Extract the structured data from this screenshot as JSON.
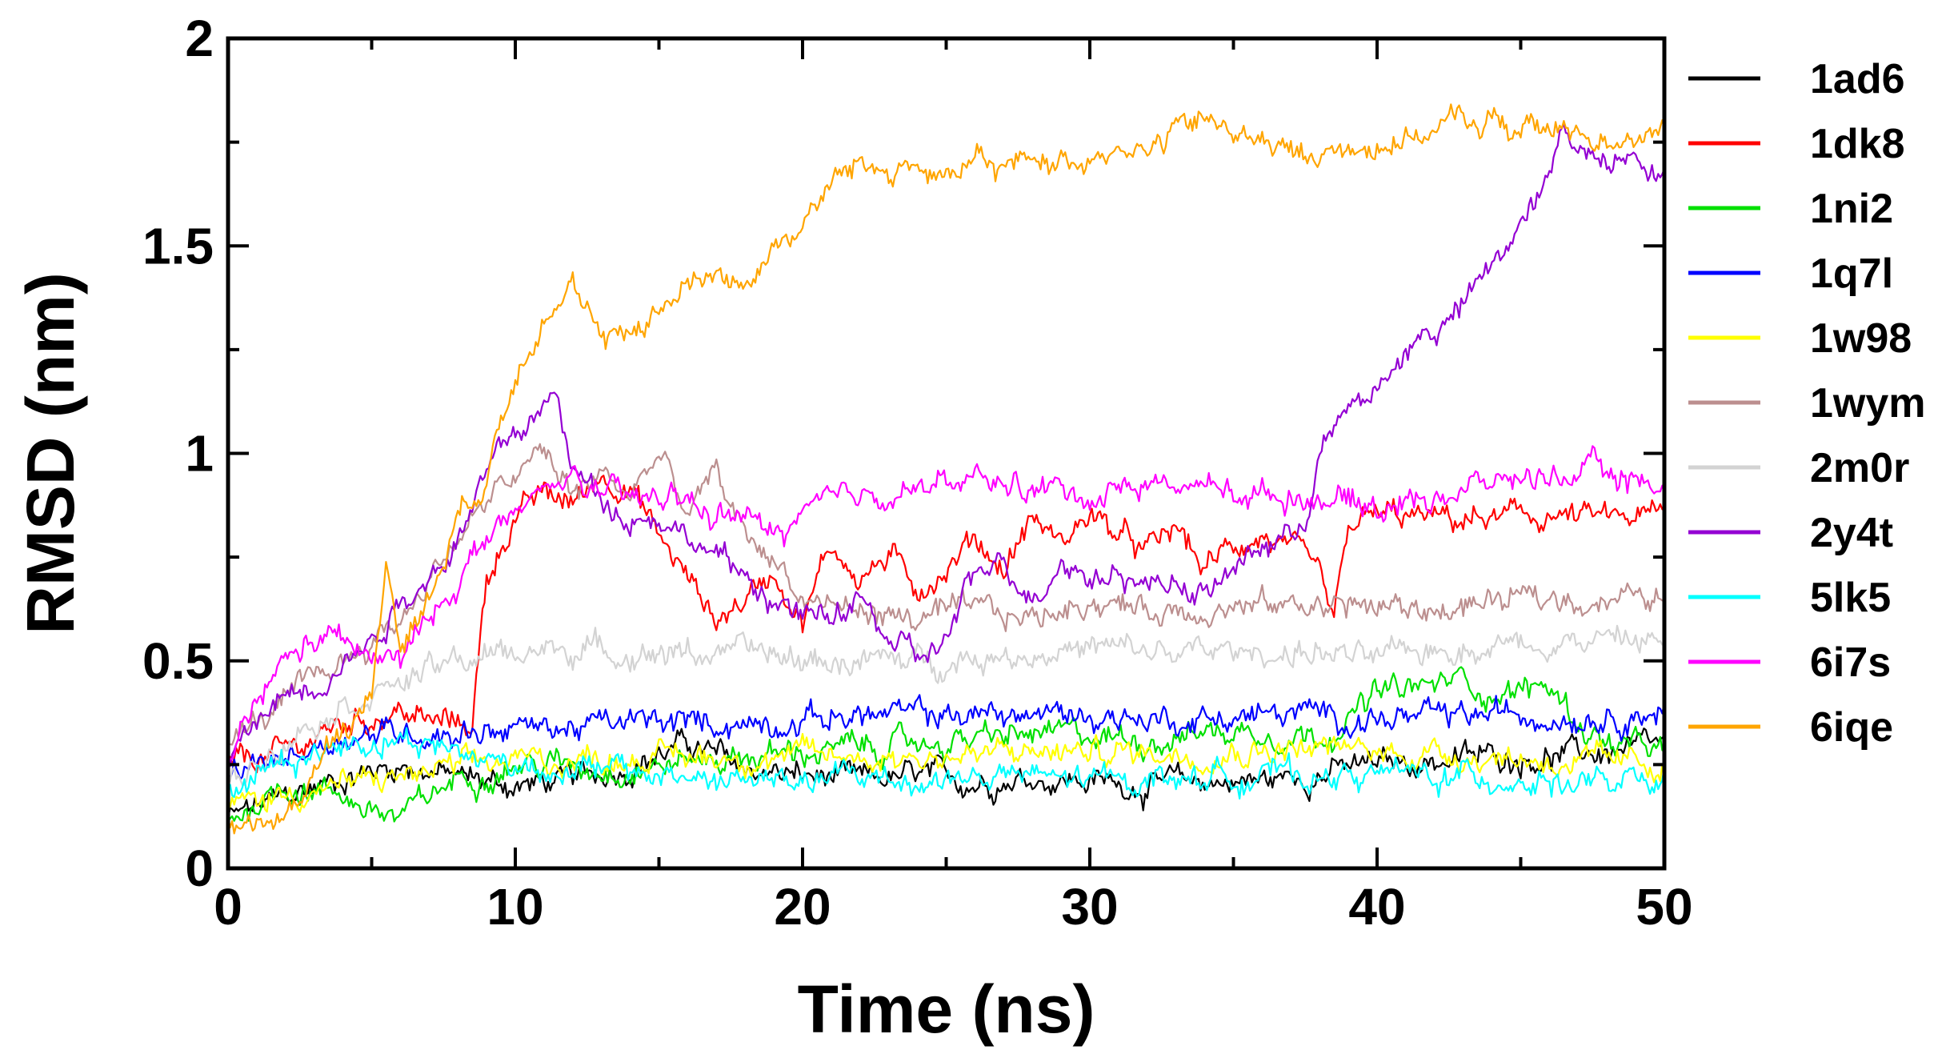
{
  "chart_data": {
    "type": "line",
    "title": "",
    "xlabel": "Time (ns)",
    "ylabel": "RMSD (nm)",
    "xlim": [
      0,
      50
    ],
    "ylim": [
      0,
      2
    ],
    "x_ticks": [
      0,
      10,
      20,
      30,
      40,
      50
    ],
    "x_tick_labels": [
      "0",
      "10",
      "20",
      "30",
      "40",
      "50"
    ],
    "y_ticks": [
      0,
      0.5,
      1,
      1.5,
      2
    ],
    "y_tick_labels": [
      "0",
      "0.5",
      "1",
      "1.5",
      "2"
    ],
    "grid": false,
    "legend_position": "right",
    "series": [
      {
        "name": "1ad6",
        "color": "#000000",
        "x": [
          0,
          2,
          4,
          6,
          8,
          10,
          12,
          14,
          16,
          18,
          20,
          22,
          24,
          26,
          28,
          30,
          32,
          34,
          36,
          38,
          40,
          42,
          44,
          46,
          48,
          50
        ],
        "y": [
          0.12,
          0.17,
          0.22,
          0.25,
          0.22,
          0.2,
          0.21,
          0.25,
          0.3,
          0.24,
          0.22,
          0.21,
          0.22,
          0.21,
          0.22,
          0.21,
          0.2,
          0.21,
          0.21,
          0.23,
          0.25,
          0.26,
          0.27,
          0.27,
          0.28,
          0.29
        ]
      },
      {
        "name": "1dk8",
        "color": "#ff0000",
        "x": [
          0,
          2,
          4,
          6,
          7,
          8.5,
          9,
          10,
          11,
          12,
          13,
          14,
          15,
          16,
          17,
          18,
          19,
          20,
          21,
          22,
          23,
          24,
          25,
          26,
          27,
          28,
          29,
          30,
          31,
          32,
          33,
          34,
          35,
          36,
          37,
          38,
          38.5,
          39,
          40,
          42,
          44,
          46,
          48,
          50
        ],
        "y": [
          0.25,
          0.28,
          0.35,
          0.38,
          0.35,
          0.35,
          0.7,
          0.85,
          0.9,
          0.88,
          0.95,
          0.92,
          0.8,
          0.7,
          0.6,
          0.65,
          0.72,
          0.6,
          0.78,
          0.7,
          0.75,
          0.68,
          0.72,
          0.8,
          0.72,
          0.85,
          0.78,
          0.86,
          0.8,
          0.76,
          0.82,
          0.72,
          0.78,
          0.8,
          0.76,
          0.7,
          0.58,
          0.82,
          0.85,
          0.84,
          0.84,
          0.85,
          0.84,
          0.85
        ]
      },
      {
        "name": "1ni2",
        "color": "#00e000",
        "x": [
          0,
          2,
          4,
          5,
          6,
          8,
          10,
          12,
          14,
          16,
          18,
          20,
          22,
          24,
          26,
          28,
          30,
          32,
          34,
          36,
          38,
          39,
          40,
          42,
          43,
          44,
          46,
          47,
          48,
          50
        ],
        "y": [
          0.12,
          0.2,
          0.18,
          0.14,
          0.12,
          0.22,
          0.25,
          0.25,
          0.24,
          0.26,
          0.27,
          0.28,
          0.29,
          0.3,
          0.31,
          0.32,
          0.32,
          0.31,
          0.33,
          0.33,
          0.32,
          0.36,
          0.42,
          0.44,
          0.46,
          0.42,
          0.44,
          0.35,
          0.3,
          0.28
        ]
      },
      {
        "name": "1q7l",
        "color": "#0000ff",
        "x": [
          0,
          2,
          4,
          6,
          8,
          10,
          12,
          14,
          16,
          18,
          20,
          22,
          24,
          26,
          28,
          30,
          32,
          34,
          36,
          38,
          40,
          42,
          44,
          46,
          48,
          50
        ],
        "y": [
          0.22,
          0.27,
          0.32,
          0.33,
          0.33,
          0.34,
          0.34,
          0.35,
          0.35,
          0.35,
          0.36,
          0.37,
          0.37,
          0.37,
          0.37,
          0.37,
          0.36,
          0.36,
          0.37,
          0.37,
          0.36,
          0.36,
          0.37,
          0.37,
          0.37,
          0.38
        ]
      },
      {
        "name": "1w98",
        "color": "#ffff00",
        "x": [
          0,
          2,
          4,
          6,
          8,
          10,
          12,
          14,
          16,
          18,
          20,
          22,
          24,
          26,
          28,
          30,
          32,
          34,
          36,
          38,
          40,
          42,
          44,
          46,
          48,
          50
        ],
        "y": [
          0.15,
          0.18,
          0.2,
          0.22,
          0.24,
          0.26,
          0.26,
          0.27,
          0.27,
          0.27,
          0.27,
          0.27,
          0.27,
          0.27,
          0.28,
          0.28,
          0.28,
          0.28,
          0.29,
          0.29,
          0.28,
          0.28,
          0.27,
          0.26,
          0.25,
          0.25
        ]
      },
      {
        "name": "1wym",
        "color": "#bc8f8f",
        "x": [
          0,
          2,
          4,
          6,
          8,
          10,
          11,
          12,
          13,
          14,
          15,
          16,
          17,
          18,
          19,
          20,
          22,
          24,
          26,
          28,
          30,
          32,
          34,
          36,
          38,
          40,
          42,
          44,
          46,
          48,
          50
        ],
        "y": [
          0.3,
          0.4,
          0.5,
          0.6,
          0.8,
          0.95,
          1.0,
          0.9,
          0.95,
          0.9,
          1.0,
          0.85,
          0.95,
          0.8,
          0.75,
          0.65,
          0.62,
          0.6,
          0.62,
          0.6,
          0.65,
          0.62,
          0.63,
          0.63,
          0.64,
          0.63,
          0.62,
          0.64,
          0.65,
          0.65,
          0.65
        ]
      },
      {
        "name": "2m0r",
        "color": "#d3d3d3",
        "x": [
          0,
          2,
          4,
          6,
          8,
          10,
          12,
          14,
          16,
          18,
          20,
          22,
          24,
          26,
          28,
          30,
          32,
          34,
          36,
          38,
          40,
          42,
          44,
          46,
          48,
          50
        ],
        "y": [
          0.2,
          0.32,
          0.4,
          0.45,
          0.5,
          0.52,
          0.53,
          0.52,
          0.52,
          0.52,
          0.5,
          0.5,
          0.5,
          0.51,
          0.52,
          0.53,
          0.52,
          0.52,
          0.52,
          0.52,
          0.5,
          0.53,
          0.54,
          0.55,
          0.55,
          0.55
        ]
      },
      {
        "name": "2y4t",
        "color": "#9400d3",
        "x": [
          0,
          1,
          2,
          3,
          4,
          5,
          6,
          7,
          8,
          9,
          10,
          11,
          11.5,
          12,
          13,
          14,
          15,
          16,
          17,
          18,
          19,
          20,
          21,
          22,
          23,
          24,
          25,
          26,
          27,
          28,
          29,
          30,
          31,
          32,
          33,
          34,
          35,
          36,
          37,
          37.5,
          38,
          39,
          40,
          41,
          42,
          43,
          44,
          45,
          46,
          46.5,
          47,
          48,
          49,
          50
        ],
        "y": [
          0.25,
          0.35,
          0.42,
          0.45,
          0.5,
          0.55,
          0.65,
          0.7,
          0.8,
          0.95,
          1.05,
          1.1,
          1.15,
          0.95,
          0.9,
          0.85,
          0.85,
          0.8,
          0.75,
          0.7,
          0.65,
          0.6,
          0.6,
          0.65,
          0.55,
          0.5,
          0.55,
          0.7,
          0.75,
          0.65,
          0.75,
          0.7,
          0.72,
          0.68,
          0.7,
          0.65,
          0.72,
          0.78,
          0.8,
          0.85,
          1.0,
          1.1,
          1.15,
          1.25,
          1.3,
          1.35,
          1.45,
          1.55,
          1.65,
          1.8,
          1.75,
          1.7,
          1.75,
          1.65
        ]
      },
      {
        "name": "5lk5",
        "color": "#00ffff",
        "x": [
          0,
          2,
          4,
          6,
          8,
          10,
          12,
          14,
          16,
          18,
          20,
          22,
          24,
          26,
          28,
          30,
          32,
          34,
          36,
          38,
          40,
          42,
          44,
          46,
          48,
          50
        ],
        "y": [
          0.2,
          0.26,
          0.3,
          0.32,
          0.28,
          0.25,
          0.24,
          0.23,
          0.22,
          0.21,
          0.21,
          0.22,
          0.21,
          0.22,
          0.22,
          0.21,
          0.22,
          0.22,
          0.23,
          0.22,
          0.23,
          0.22,
          0.22,
          0.21,
          0.2,
          0.2
        ]
      },
      {
        "name": "6i7s",
        "color": "#ff00ff",
        "x": [
          0,
          1,
          2,
          3,
          4,
          5,
          6,
          7,
          8,
          9,
          10,
          11,
          12,
          13,
          14,
          15,
          16,
          17,
          18,
          19,
          20,
          22,
          24,
          26,
          28,
          30,
          32,
          34,
          36,
          38,
          40,
          42,
          44,
          46,
          48,
          50
        ],
        "y": [
          0.25,
          0.4,
          0.5,
          0.55,
          0.55,
          0.5,
          0.5,
          0.6,
          0.7,
          0.8,
          0.85,
          0.9,
          0.95,
          0.9,
          0.88,
          0.9,
          0.88,
          0.85,
          0.85,
          0.8,
          0.85,
          0.9,
          0.92,
          0.93,
          0.92,
          0.9,
          0.93,
          0.92,
          0.9,
          0.9,
          0.87,
          0.9,
          0.93,
          0.95,
          0.95,
          0.92
        ]
      },
      {
        "name": "6iqe",
        "color": "#ffa500",
        "x": [
          0,
          1,
          2,
          3,
          4,
          5,
          5.5,
          6,
          7,
          8,
          9,
          10,
          11,
          12,
          13,
          14,
          15,
          16,
          17,
          18,
          19,
          20,
          21,
          22,
          23,
          24,
          25,
          26,
          27,
          28,
          29,
          30,
          31,
          32,
          33,
          34,
          35,
          36,
          37,
          38,
          39,
          40,
          41,
          42,
          43,
          44,
          45,
          46,
          47,
          48,
          49,
          50
        ],
        "y": [
          0.1,
          0.12,
          0.1,
          0.25,
          0.35,
          0.4,
          0.75,
          0.55,
          0.65,
          0.85,
          0.95,
          1.2,
          1.35,
          1.4,
          1.25,
          1.3,
          1.35,
          1.4,
          1.45,
          1.4,
          1.5,
          1.55,
          1.65,
          1.7,
          1.68,
          1.7,
          1.65,
          1.7,
          1.68,
          1.72,
          1.7,
          1.72,
          1.75,
          1.72,
          1.78,
          1.8,
          1.78,
          1.75,
          1.72,
          1.72,
          1.73,
          1.75,
          1.76,
          1.78,
          1.8,
          1.8,
          1.78,
          1.78,
          1.77,
          1.76,
          1.78,
          1.77
        ]
      }
    ]
  }
}
